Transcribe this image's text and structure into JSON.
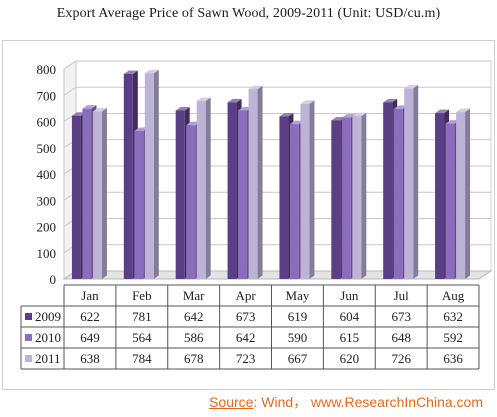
{
  "chart_data": {
    "type": "bar",
    "title": "Export Average Price of Sawn Wood, 2009-2011  (Unit: USD/cu.m)",
    "categories": [
      "Jan",
      "Feb",
      "Mar",
      "Apr",
      "May",
      "Jun",
      "Jul",
      "Aug"
    ],
    "series": [
      {
        "name": "2009",
        "values": [
          622,
          781,
          642,
          673,
          619,
          604,
          673,
          632
        ],
        "color": "#5b3f86"
      },
      {
        "name": "2010",
        "values": [
          649,
          564,
          586,
          642,
          590,
          615,
          648,
          592
        ],
        "color": "#8c6cbc"
      },
      {
        "name": "2011",
        "values": [
          638,
          784,
          678,
          723,
          667,
          620,
          726,
          636
        ],
        "color": "#bdb3d6"
      }
    ],
    "y_ticks": [
      0,
      100,
      200,
      300,
      400,
      500,
      600,
      700,
      800
    ],
    "ylim": [
      0,
      800
    ],
    "grid": true,
    "legend": "data-table"
  },
  "source": {
    "label": "Source",
    "text": ": Wind， www.ResearchInChina.com"
  }
}
